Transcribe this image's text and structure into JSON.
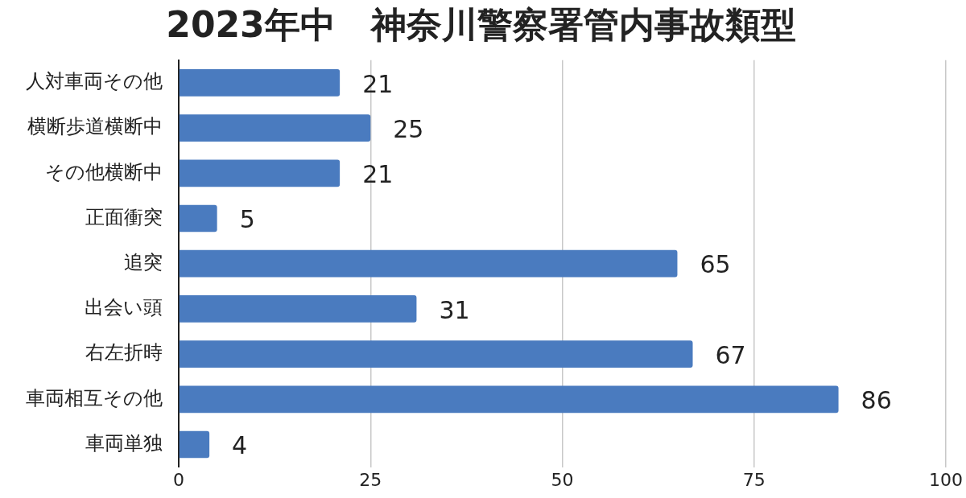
{
  "chart_data": {
    "type": "bar",
    "orientation": "horizontal",
    "title": "2023年中　神奈川警察署管内事故類型",
    "categories": [
      "人対車両その他",
      "横断歩道横断中",
      "その他横断中",
      "正面衝突",
      "追突",
      "出会い頭",
      "右左折時",
      "車両相互その他",
      "車両単独"
    ],
    "values": [
      21,
      25,
      21,
      5,
      65,
      31,
      67,
      86,
      4
    ],
    "color": "#4a7bbf",
    "xlim": [
      0,
      100
    ],
    "xticks": [
      0,
      25,
      50,
      75,
      100
    ],
    "grid": "x",
    "data_labels": true
  }
}
